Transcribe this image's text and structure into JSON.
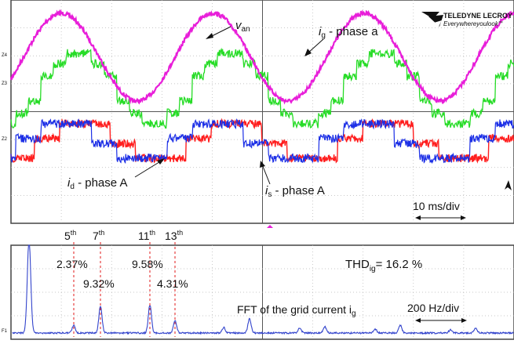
{
  "brand": {
    "name": "TELEDYNE LECROY",
    "tagline": "Everywhereyoulook",
    "tm": "™"
  },
  "top_panel": {
    "labels": {
      "van": {
        "main": "v",
        "sub": "an"
      },
      "ig": {
        "main": "i",
        "sub": "g",
        "rest": " - phase a"
      },
      "id": {
        "main": "i",
        "sub": "d",
        "rest": " - phase A"
      },
      "is": {
        "main": "i",
        "sub": "s",
        "rest": " - phase A"
      },
      "timebase": "10 ms/div"
    },
    "channel_markers": [
      "Z4",
      "Z3",
      "Z2"
    ],
    "colors": {
      "van": "#e81ed9",
      "ig": "#27dc27",
      "id": "#ff1e1e",
      "is": "#1c2fe6",
      "grid": "#9a9a9a",
      "frame": "#444444"
    }
  },
  "bottom_panel": {
    "harmonics": [
      {
        "order": "5",
        "sup": "th",
        "pct": "2.37%"
      },
      {
        "order": "7",
        "sup": "th",
        "pct": "9.32%"
      },
      {
        "order": "11",
        "sup": "th",
        "pct": "9.58%"
      },
      {
        "order": "13",
        "sup": "th",
        "pct": "4.31%"
      }
    ],
    "thd": {
      "main": "THD",
      "sub": "ig",
      "rest": "= 16.2 %"
    },
    "fft_label": {
      "main": "FFT of the grid current i",
      "sub": "g"
    },
    "scale": "200 Hz/div",
    "channel_marker": "F1",
    "colors": {
      "spectrum": "#3344cc",
      "marker": "#e11a1a"
    }
  }
}
